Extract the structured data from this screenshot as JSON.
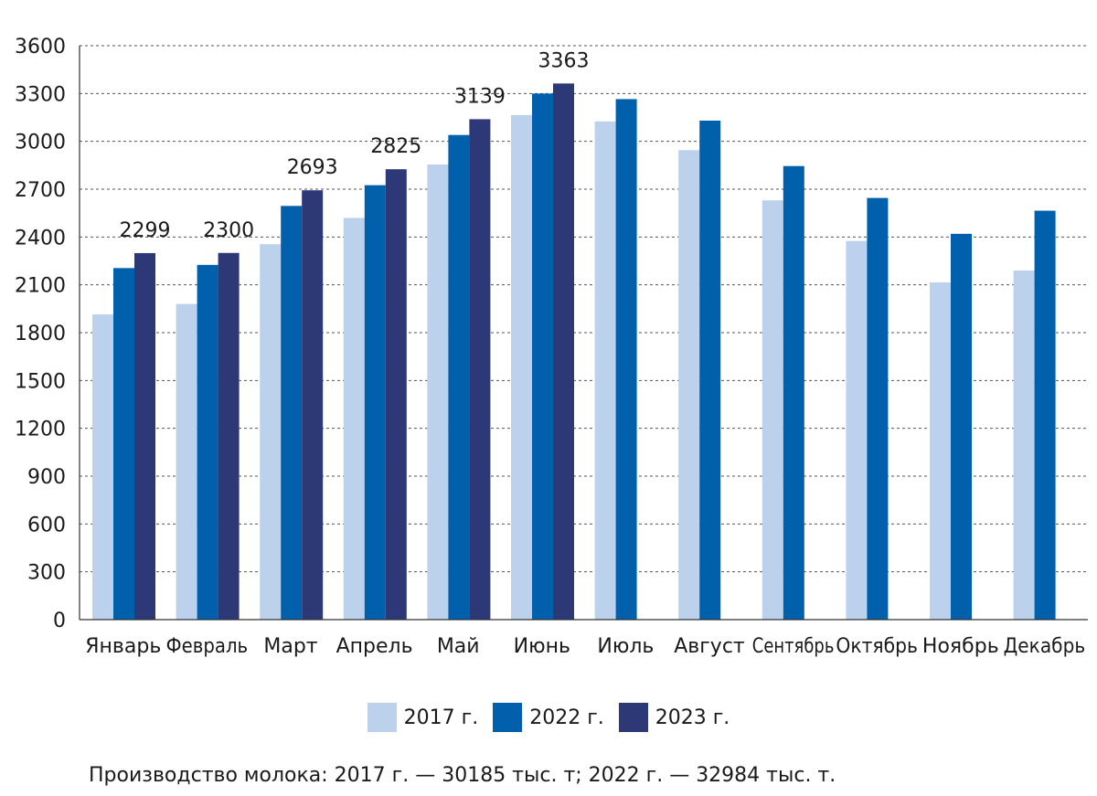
{
  "chart_data": {
    "type": "bar",
    "categories": [
      "Январь",
      "Февраль",
      "Март",
      "Апрель",
      "Май",
      "Июнь",
      "Июль",
      "Август",
      "Сентябрь",
      "Октябрь",
      "Ноябрь",
      "Декабрь"
    ],
    "series": [
      {
        "name": "2017 г.",
        "color": "#bcd1ec",
        "values": [
          1915,
          1980,
          2355,
          2520,
          2855,
          3165,
          3125,
          2945,
          2630,
          2375,
          2115,
          2190
        ]
      },
      {
        "name": "2022 г.",
        "color": "#0060ac",
        "values": [
          2205,
          2225,
          2595,
          2725,
          3040,
          3300,
          3265,
          3130,
          2845,
          2645,
          2420,
          2565
        ]
      },
      {
        "name": "2023 г.",
        "color": "#2d3876",
        "values": [
          2299,
          2300,
          2693,
          2825,
          3139,
          3363,
          null,
          null,
          null,
          null,
          null,
          null
        ]
      }
    ],
    "data_labels": {
      "series": "2023 г.",
      "values": [
        "2299",
        "2300",
        "2693",
        "2825",
        "3139",
        "3363"
      ]
    },
    "yticks": [
      "0",
      "300",
      "600",
      "900",
      "1200",
      "1500",
      "1800",
      "2100",
      "2400",
      "2700",
      "3000",
      "3300",
      "3600"
    ],
    "ylim": [
      0,
      3600
    ],
    "grid": true,
    "legend_position": "bottom",
    "title": "",
    "xlabel": "",
    "ylabel": ""
  },
  "footnote": "Производство молока: 2017 г. — 30185 тыс. т; 2022 г. — 32984 тыс. т."
}
